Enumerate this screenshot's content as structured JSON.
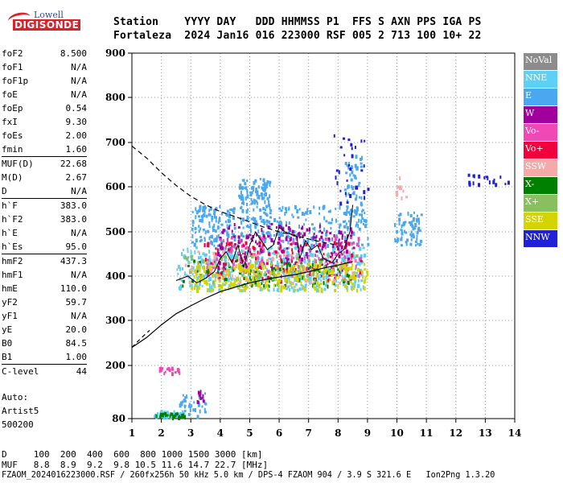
{
  "logo": {
    "top": "Lowell",
    "main": "DIGISONDE"
  },
  "header": {
    "line1": "Station    YYYY DAY   DDD HHMMSS P1  FFS S AXN PPS IGA PS",
    "line2": "Fortaleza  2024 Jan16 016 223000 RSF 005 2 713 100 10+ 22"
  },
  "params": [
    {
      "k": "foF2",
      "v": "8.500"
    },
    {
      "k": "foF1",
      "v": "N/A"
    },
    {
      "k": "foF1p",
      "v": "N/A"
    },
    {
      "k": "foE",
      "v": "N/A"
    },
    {
      "k": "foEp",
      "v": "0.54"
    },
    {
      "k": "fxI",
      "v": "9.30"
    },
    {
      "k": "foEs",
      "v": "2.00"
    },
    {
      "k": "fmin",
      "v": "1.60"
    },
    {
      "k": "MUF(D)",
      "v": "22.68"
    },
    {
      "k": "M(D)",
      "v": "2.67"
    },
    {
      "k": "D",
      "v": "N/A"
    },
    {
      "k": "h`F",
      "v": "383.0"
    },
    {
      "k": "h`F2",
      "v": "383.0"
    },
    {
      "k": "h`E",
      "v": "N/A"
    },
    {
      "k": "h`Es",
      "v": "95.0"
    },
    {
      "k": "hmF2",
      "v": "437.3"
    },
    {
      "k": "hmF1",
      "v": "N/A"
    },
    {
      "k": "hmE",
      "v": "110.0"
    },
    {
      "k": "yF2",
      "v": "59.7"
    },
    {
      "k": "yF1",
      "v": "N/A"
    },
    {
      "k": "yE",
      "v": "20.0"
    },
    {
      "k": "B0",
      "v": "84.5"
    },
    {
      "k": "B1",
      "v": "1.00"
    },
    {
      "k": "C-level",
      "v": "44"
    }
  ],
  "auto": [
    "Auto:",
    "Artist5",
    "500200"
  ],
  "legend": [
    {
      "label": "NoVal",
      "color": "#8c8c8c"
    },
    {
      "label": "NNE",
      "color": "#5fd0f5"
    },
    {
      "label": "E",
      "color": "#4aa8f0"
    },
    {
      "label": "W",
      "color": "#a0009c"
    },
    {
      "label": "Vo-",
      "color": "#f048b4"
    },
    {
      "label": "Vo+",
      "color": "#f0003c"
    },
    {
      "label": "SSW",
      "color": "#f5aaaa"
    },
    {
      "label": "X-",
      "color": "#008000"
    },
    {
      "label": "X+",
      "color": "#88c060"
    },
    {
      "label": "SSE",
      "color": "#d4d400"
    },
    {
      "label": "NNW",
      "color": "#2020d8"
    }
  ],
  "bottom": {
    "d_line": "D     100  200  400  600  800 1000 1500 3000 [km]",
    "muf_line": "MUF   8.8  8.9  9.2  9.8 10.5 11.6 14.7 22.7 [MHz]",
    "footer": "FZAOM_2024016223000.RSF / 260fx256h 50 kHz 5.0 km / DPS-4 FZAOM 904 / 3.9 S 321.6 E   Ion2Png 1.3.20"
  },
  "chart_data": {
    "type": "scatter",
    "title": "",
    "xlabel": "",
    "ylabel": "",
    "xlim": [
      1,
      14
    ],
    "ylim": [
      80,
      900
    ],
    "x_ticks": [
      "1",
      "2",
      "3",
      "4",
      "5",
      "6",
      "7",
      "8",
      "9",
      "10",
      "11",
      "12",
      "13",
      "14"
    ],
    "y_ticks": [
      "80",
      "200",
      "300",
      "400",
      "500",
      "600",
      "700",
      "800",
      "900"
    ],
    "y_tick_values": [
      80,
      200,
      300,
      400,
      500,
      600,
      700,
      800,
      900
    ],
    "grid": true,
    "clusters": [
      {
        "mode": "NNE",
        "color": "#5fd0f5",
        "x": [
          2.5,
          8.9
        ],
        "y": [
          370,
          470
        ],
        "n": 500
      },
      {
        "mode": "E",
        "color": "#4aa8f0",
        "x": [
          4.6,
          5.7
        ],
        "y": [
          480,
          620
        ],
        "n": 160
      },
      {
        "mode": "E",
        "color": "#4aa8f0",
        "x": [
          3.0,
          4.5
        ],
        "y": [
          470,
          560
        ],
        "n": 120
      },
      {
        "mode": "E",
        "color": "#4aa8f0",
        "x": [
          5.8,
          9.0
        ],
        "y": [
          470,
          560
        ],
        "n": 150
      },
      {
        "mode": "E",
        "color": "#4aa8f0",
        "x": [
          8.2,
          8.8
        ],
        "y": [
          520,
          680
        ],
        "n": 60
      },
      {
        "mode": "E",
        "color": "#4aa8f0",
        "x": [
          9.9,
          10.8
        ],
        "y": [
          470,
          545
        ],
        "n": 70
      },
      {
        "mode": "E",
        "color": "#4aa8f0",
        "x": [
          2.6,
          3.5
        ],
        "y": [
          88,
          140
        ],
        "n": 40
      },
      {
        "mode": "NNE",
        "color": "#5fd0f5",
        "x": [
          1.7,
          2.8
        ],
        "y": [
          85,
          100
        ],
        "n": 40
      },
      {
        "mode": "W",
        "color": "#a0009c",
        "x": [
          3.8,
          8.6
        ],
        "y": [
          420,
          520
        ],
        "n": 180
      },
      {
        "mode": "W",
        "color": "#a0009c",
        "x": [
          3.2,
          3.4
        ],
        "y": [
          120,
          145
        ],
        "n": 12
      },
      {
        "mode": "Vo-",
        "color": "#f048b4",
        "x": [
          3.5,
          8.8
        ],
        "y": [
          400,
          490
        ],
        "n": 140
      },
      {
        "mode": "Vo-",
        "color": "#f048b4",
        "x": [
          1.9,
          2.6
        ],
        "y": [
          185,
          198
        ],
        "n": 20
      },
      {
        "mode": "Vo+",
        "color": "#f0003c",
        "x": [
          3.4,
          8.8
        ],
        "y": [
          390,
          480
        ],
        "n": 110
      },
      {
        "mode": "SSW",
        "color": "#f5aaaa",
        "x": [
          2.8,
          8.6
        ],
        "y": [
          380,
          460
        ],
        "n": 90
      },
      {
        "mode": "SSW",
        "color": "#f5aaaa",
        "x": [
          9.9,
          10.3
        ],
        "y": [
          575,
          625
        ],
        "n": 12
      },
      {
        "mode": "X-",
        "color": "#008000",
        "x": [
          2.6,
          8.4
        ],
        "y": [
          380,
          440
        ],
        "n": 90
      },
      {
        "mode": "X-",
        "color": "#008000",
        "x": [
          1.8,
          2.8
        ],
        "y": [
          85,
          95
        ],
        "n": 30
      },
      {
        "mode": "X+",
        "color": "#88c060",
        "x": [
          2.7,
          8.6
        ],
        "y": [
          380,
          450
        ],
        "n": 80
      },
      {
        "mode": "SSE",
        "color": "#d4d400",
        "x": [
          3.0,
          9.0
        ],
        "y": [
          370,
          430
        ],
        "n": 250
      },
      {
        "mode": "NNW",
        "color": "#2020d8",
        "x": [
          7.8,
          9.0
        ],
        "y": [
          565,
          730
        ],
        "n": 30
      },
      {
        "mode": "NNW",
        "color": "#2020d8",
        "x": [
          12.4,
          13.8
        ],
        "y": [
          608,
          630
        ],
        "n": 18
      }
    ],
    "lower_solid_line": {
      "x": [
        1.0,
        1.5,
        2.0,
        2.5,
        3.0,
        3.5,
        4.0,
        4.5,
        5.0,
        5.5,
        6.0,
        6.5,
        7.0,
        7.5,
        8.0,
        8.5
      ],
      "y": [
        240,
        262,
        290,
        315,
        333,
        350,
        365,
        375,
        385,
        392,
        398,
        403,
        410,
        418,
        425,
        433
      ]
    },
    "dashed_line": {
      "x": [
        1.0,
        1.5,
        2.0,
        2.5,
        3.0,
        3.5,
        4.0,
        4.5,
        5.0,
        5.5,
        6.0,
        6.5,
        7.0,
        7.5,
        8.0
      ],
      "y": [
        692,
        665,
        632,
        603,
        579,
        560,
        545,
        534,
        522,
        510,
        500,
        492,
        484,
        476,
        470
      ]
    },
    "lower_dashed_line": {
      "x": [
        1.0,
        1.3,
        1.6
      ],
      "y": [
        240,
        260,
        278
      ]
    },
    "trace_line": {
      "x": [
        2.5,
        2.9,
        3.2,
        3.5,
        3.8,
        4.0,
        4.2,
        4.4,
        4.6,
        4.8,
        5.0,
        5.2,
        5.4,
        5.6,
        5.8,
        6.0,
        6.2,
        6.4,
        6.6,
        6.7,
        6.9,
        7.1,
        7.3,
        7.5,
        7.8,
        8.0,
        8.2,
        8.4,
        8.5
      ],
      "y": [
        390,
        400,
        385,
        395,
        410,
        440,
        455,
        430,
        470,
        420,
        470,
        500,
        480,
        460,
        470,
        510,
        500,
        495,
        490,
        440,
        480,
        460,
        470,
        440,
        430,
        450,
        460,
        500,
        560
      ]
    }
  }
}
